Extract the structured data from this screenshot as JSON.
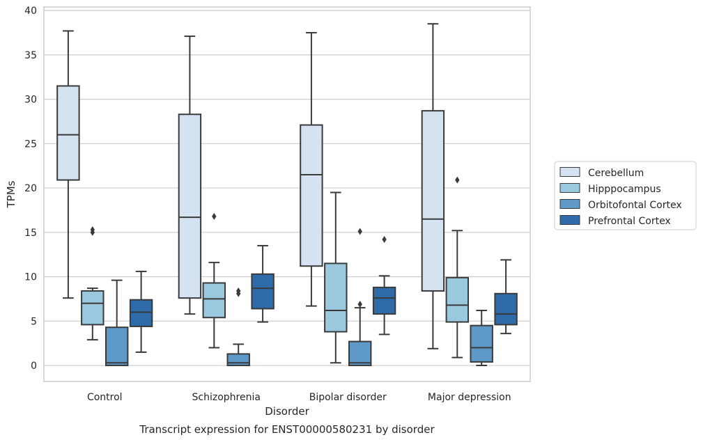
{
  "chart_data": {
    "type": "box",
    "xlabel": "Disorder",
    "ylabel": "TPMs",
    "caption": "Transcript expression for ENST00000580231 by disorder",
    "ylim": [
      -1.8,
      40.4
    ],
    "yticks": [
      0,
      5,
      10,
      15,
      20,
      25,
      30,
      35,
      40
    ],
    "categories": [
      "Control",
      "Schizophrenia",
      "Bipolar disorder",
      "Major depression"
    ],
    "grid": "horizontal",
    "legend_position": "right",
    "series": [
      {
        "name": "Cerebellum",
        "color": "#d4e2f1",
        "boxes": [
          {
            "whislo": 7.6,
            "q1": 20.9,
            "med": 26.0,
            "q3": 31.5,
            "whishi": 37.7,
            "fliers": []
          },
          {
            "whislo": 5.8,
            "q1": 7.6,
            "med": 16.7,
            "q3": 28.3,
            "whishi": 37.1,
            "fliers": []
          },
          {
            "whislo": 6.7,
            "q1": 11.2,
            "med": 21.5,
            "q3": 27.1,
            "whishi": 37.5,
            "fliers": []
          },
          {
            "whislo": 1.9,
            "q1": 8.4,
            "med": 16.5,
            "q3": 28.7,
            "whishi": 38.5,
            "fliers": []
          }
        ]
      },
      {
        "name": "Hipppocampus",
        "color": "#9ac8df",
        "boxes": [
          {
            "whislo": 2.9,
            "q1": 4.6,
            "med": 7.0,
            "q3": 8.4,
            "whishi": 8.7,
            "fliers": [
              15.0,
              15.3
            ]
          },
          {
            "whislo": 2.0,
            "q1": 5.4,
            "med": 7.5,
            "q3": 9.3,
            "whishi": 11.6,
            "fliers": [
              16.8
            ]
          },
          {
            "whislo": 0.3,
            "q1": 3.8,
            "med": 6.2,
            "q3": 11.5,
            "whishi": 19.5,
            "fliers": []
          },
          {
            "whislo": 0.9,
            "q1": 4.9,
            "med": 6.8,
            "q3": 9.9,
            "whishi": 15.2,
            "fliers": [
              20.9
            ]
          }
        ]
      },
      {
        "name": "Orbitofontal Cortex",
        "color": "#5e99c8",
        "boxes": [
          {
            "whislo": 0.0,
            "q1": 0.0,
            "med": 0.3,
            "q3": 4.3,
            "whishi": 9.6,
            "fliers": []
          },
          {
            "whislo": 0.0,
            "q1": 0.0,
            "med": 0.3,
            "q3": 1.3,
            "whishi": 2.4,
            "fliers": [
              8.1,
              8.4
            ]
          },
          {
            "whislo": 0.0,
            "q1": 0.0,
            "med": 0.3,
            "q3": 2.7,
            "whishi": 6.5,
            "fliers": [
              6.9,
              15.1
            ]
          },
          {
            "whislo": 0.0,
            "q1": 0.4,
            "med": 2.0,
            "q3": 4.5,
            "whishi": 6.2,
            "fliers": []
          }
        ]
      },
      {
        "name": "Prefrontal Cortex",
        "color": "#2e6ba8",
        "boxes": [
          {
            "whislo": 1.5,
            "q1": 4.4,
            "med": 6.0,
            "q3": 7.4,
            "whishi": 10.6,
            "fliers": []
          },
          {
            "whislo": 4.9,
            "q1": 6.4,
            "med": 8.7,
            "q3": 10.3,
            "whishi": 13.5,
            "fliers": []
          },
          {
            "whislo": 3.5,
            "q1": 5.8,
            "med": 7.6,
            "q3": 8.8,
            "whishi": 10.1,
            "fliers": [
              14.2
            ]
          },
          {
            "whislo": 3.6,
            "q1": 4.6,
            "med": 5.8,
            "q3": 8.1,
            "whishi": 11.9,
            "fliers": []
          }
        ]
      }
    ]
  }
}
